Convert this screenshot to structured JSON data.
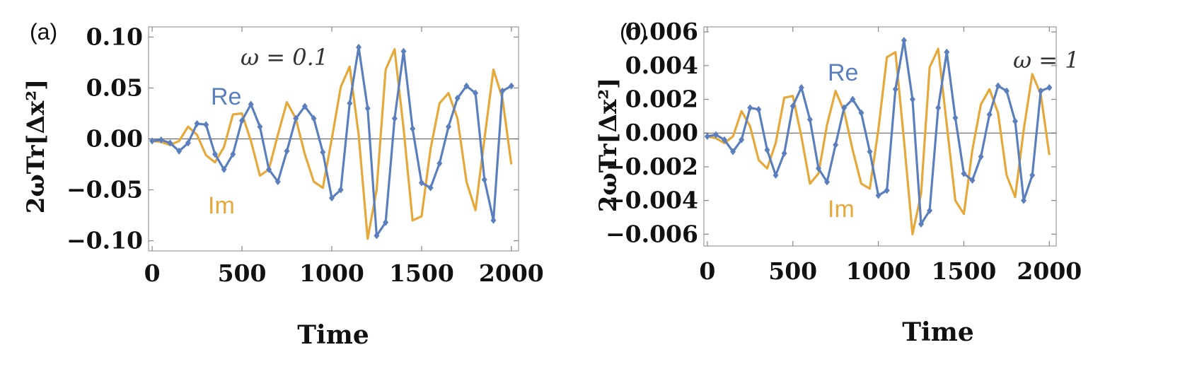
{
  "panels": [
    {
      "panel_label": "(a)",
      "annotation": "ω = 0.1",
      "chart_data": {
        "type": "line",
        "xlabel": "Time",
        "ylabel": "2ωTr[Δx²]",
        "xlim": [
          -20,
          2040
        ],
        "ylim": [
          -0.11,
          0.11
        ],
        "xticks": [
          0,
          500,
          1000,
          1500,
          2000
        ],
        "xtick_labels": [
          "0",
          "500",
          "1000",
          "1500",
          "2000"
        ],
        "yticks": [
          0.1,
          0.05,
          0.0,
          -0.05,
          -0.1
        ],
        "ytick_labels": [
          "0.10",
          "0.05",
          "0.00",
          "−0.05",
          "−0.10"
        ],
        "zero_line": true,
        "x": [
          0,
          50,
          100,
          150,
          200,
          250,
          300,
          350,
          400,
          450,
          500,
          550,
          600,
          650,
          700,
          750,
          800,
          850,
          900,
          950,
          1000,
          1050,
          1100,
          1150,
          1200,
          1250,
          1300,
          1350,
          1400,
          1450,
          1500,
          1550,
          1600,
          1650,
          1700,
          1750,
          1800,
          1850,
          1900,
          1950,
          2000
        ],
        "series": [
          {
            "name": "Re",
            "color": "#5b7fbd",
            "markers": true,
            "values": [
              -0.002,
              -0.001,
              -0.004,
              -0.012,
              -0.004,
              0.015,
              0.014,
              -0.015,
              -0.03,
              -0.015,
              0.018,
              0.034,
              0.012,
              -0.03,
              -0.042,
              -0.012,
              0.02,
              0.032,
              0.02,
              -0.013,
              -0.058,
              -0.05,
              0.035,
              0.09,
              0.03,
              -0.095,
              -0.082,
              0.02,
              0.086,
              0.01,
              -0.043,
              -0.048,
              -0.024,
              0.012,
              0.04,
              0.052,
              0.045,
              -0.04,
              -0.08,
              0.047,
              0.052
            ]
          },
          {
            "name": "Im",
            "color": "#e5a83b",
            "markers": false,
            "values": [
              -0.002,
              -0.003,
              -0.006,
              -0.002,
              0.012,
              0.004,
              -0.016,
              -0.023,
              -0.008,
              0.024,
              0.025,
              -0.002,
              -0.036,
              -0.03,
              0.004,
              0.036,
              0.02,
              -0.015,
              -0.042,
              -0.048,
              0.0,
              0.051,
              0.071,
              0.004,
              -0.098,
              -0.05,
              0.068,
              0.088,
              0.01,
              -0.08,
              -0.076,
              -0.01,
              0.035,
              0.045,
              0.02,
              -0.042,
              -0.07,
              0.0,
              0.068,
              0.04,
              -0.025
            ]
          }
        ]
      }
    },
    {
      "panel_label": "(b)",
      "annotation": "ω = 1",
      "chart_data": {
        "type": "line",
        "xlabel": "Time",
        "ylabel": "2ωTr[Δx²]",
        "xlim": [
          -20,
          2040
        ],
        "ylim": [
          -0.0067,
          0.0063
        ],
        "xticks": [
          0,
          500,
          1000,
          1500,
          2000
        ],
        "xtick_labels": [
          "0",
          "500",
          "1000",
          "1500",
          "2000"
        ],
        "yticks": [
          0.006,
          0.004,
          0.002,
          0.0,
          -0.002,
          -0.004,
          -0.006
        ],
        "ytick_labels": [
          "0.006",
          "0.004",
          "0.002",
          "0.000",
          "−0.002",
          "−0.004",
          "−0.006"
        ],
        "zero_line": true,
        "x": [
          0,
          50,
          100,
          150,
          200,
          250,
          300,
          350,
          400,
          450,
          500,
          550,
          600,
          650,
          700,
          750,
          800,
          850,
          900,
          950,
          1000,
          1050,
          1100,
          1150,
          1200,
          1250,
          1300,
          1350,
          1400,
          1450,
          1500,
          1550,
          1600,
          1650,
          1700,
          1750,
          1800,
          1850,
          1900,
          1950,
          2000
        ],
        "series": [
          {
            "name": "Re",
            "color": "#5b7fbd",
            "markers": true,
            "values": [
              -0.0002,
              -0.0001,
              -0.0004,
              -0.0011,
              -0.0004,
              0.0015,
              0.0014,
              -0.001,
              -0.0025,
              -0.0012,
              0.0016,
              0.0027,
              0.0008,
              -0.0021,
              -0.0029,
              -0.0007,
              0.0015,
              0.002,
              0.0012,
              -0.0011,
              -0.0037,
              -0.0034,
              0.0026,
              0.0055,
              0.002,
              -0.0054,
              -0.0046,
              0.0015,
              0.0048,
              0.0009,
              -0.0024,
              -0.0028,
              -0.0014,
              0.0011,
              0.0028,
              0.0025,
              0.0007,
              -0.004,
              -0.0025,
              0.0025,
              0.0027
            ]
          },
          {
            "name": "Im",
            "color": "#e5a83b",
            "markers": false,
            "values": [
              -0.0002,
              -0.0003,
              -0.0006,
              -0.0002,
              0.0013,
              0.0004,
              -0.0016,
              -0.0021,
              -0.0006,
              0.0021,
              0.0022,
              -0.0002,
              -0.003,
              -0.0024,
              0.0005,
              0.0025,
              0.0013,
              -0.001,
              -0.003,
              -0.0033,
              0.0002,
              0.0045,
              0.0048,
              -0.0004,
              -0.006,
              -0.0036,
              0.0039,
              0.005,
              0.0005,
              -0.004,
              -0.0048,
              -0.001,
              0.0017,
              0.0026,
              0.0012,
              -0.0025,
              -0.0038,
              0.0002,
              0.0035,
              0.0023,
              -0.0013
            ]
          }
        ]
      }
    }
  ]
}
